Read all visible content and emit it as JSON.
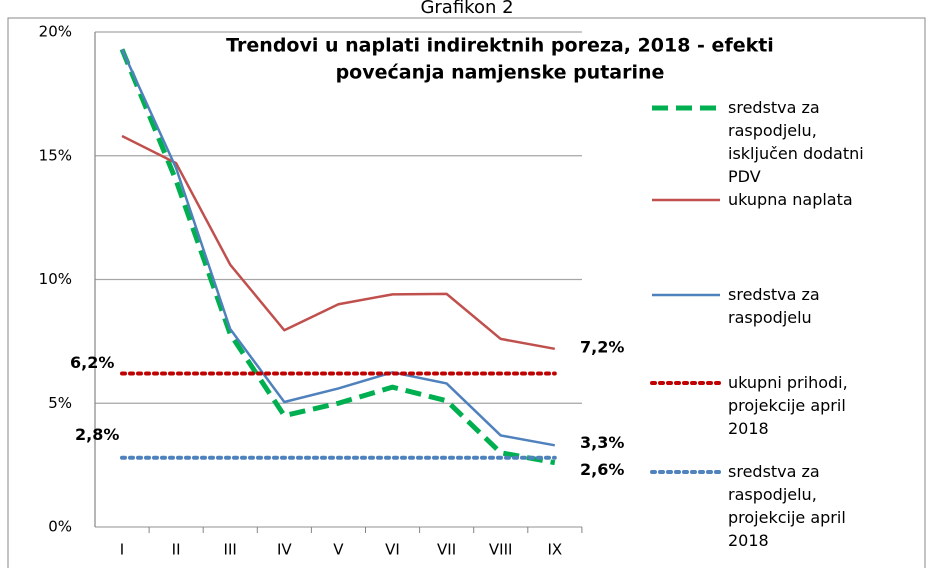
{
  "chart_data": {
    "type": "line",
    "caption": "Grafikon 2",
    "title": [
      "Trendovi u naplati indirektnih poreza, 2018 - efekti",
      "povećanja namjenske putarine"
    ],
    "categories": [
      "I",
      "II",
      "III",
      "IV",
      "V",
      "VI",
      "VII",
      "VIII",
      "IX"
    ],
    "ylim": [
      0,
      20
    ],
    "yticks": [
      {
        "value": 0,
        "label": "0%"
      },
      {
        "value": 5,
        "label": "5%"
      },
      {
        "value": 10,
        "label": "10%"
      },
      {
        "value": 15,
        "label": "15%"
      },
      {
        "value": 20,
        "label": "20%"
      }
    ],
    "grid": true,
    "legend": "right",
    "series": [
      {
        "name": "sredstva za raspodjelu, isključen dodatni PDV",
        "color": "#00b050",
        "style": "dashed",
        "values": [
          19.3,
          14.0,
          7.8,
          4.5,
          5.0,
          5.65,
          5.1,
          3.0,
          2.6
        ],
        "value_labels": [
          null,
          null,
          null,
          null,
          null,
          null,
          null,
          null,
          "2,6%"
        ]
      },
      {
        "name": "ukupna naplata",
        "color": "#c0504d",
        "style": "solid",
        "values": [
          15.8,
          14.7,
          10.6,
          7.95,
          9.0,
          9.4,
          9.42,
          7.6,
          7.2
        ],
        "value_labels": [
          null,
          null,
          null,
          null,
          null,
          null,
          null,
          null,
          "7,2%"
        ]
      },
      {
        "name": "sredstva za raspodjelu",
        "color": "#4f81bd",
        "style": "solid",
        "values": [
          19.3,
          14.5,
          8.0,
          5.05,
          5.6,
          6.25,
          5.8,
          3.7,
          3.3
        ],
        "value_labels": [
          null,
          null,
          null,
          null,
          null,
          null,
          null,
          null,
          "3,3%"
        ]
      },
      {
        "name": "ukupni prihodi, projekcije april 2018",
        "color": "#c00000",
        "style": "dotted",
        "values": [
          6.2,
          6.2,
          6.2,
          6.2,
          6.2,
          6.2,
          6.2,
          6.2,
          6.2
        ],
        "value_labels": [
          "6,2%",
          null,
          null,
          null,
          null,
          null,
          null,
          null,
          null
        ]
      },
      {
        "name": "sredstva za raspodjelu, projekcije april 2018",
        "color": "#4f81bd",
        "style": "dotted",
        "values": [
          2.8,
          2.8,
          2.8,
          2.8,
          2.8,
          2.8,
          2.8,
          2.8,
          2.8
        ],
        "value_labels": [
          "2,8%",
          null,
          null,
          null,
          null,
          null,
          null,
          null,
          null
        ]
      }
    ]
  }
}
